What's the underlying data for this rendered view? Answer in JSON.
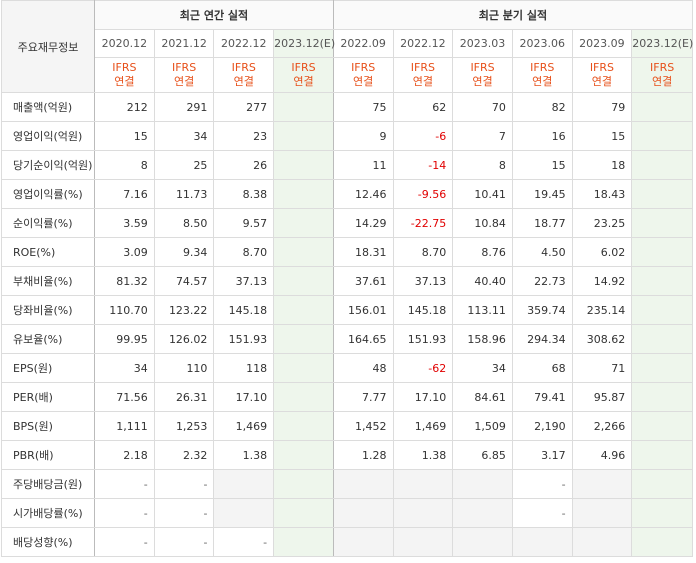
{
  "header": {
    "row_label": "주요재무정보",
    "annual_group": "최근 연간 실적",
    "quarterly_group": "최근 분기 실적",
    "annual_periods": [
      "2020.12",
      "2021.12",
      "2022.12",
      "2023.12(E)"
    ],
    "quarterly_periods": [
      "2022.09",
      "2022.12",
      "2023.03",
      "2023.06",
      "2023.09",
      "2023.12(E)"
    ],
    "ifrs_top": "IFRS",
    "ifrs_bottom": "연결"
  },
  "rows": [
    {
      "label": "매출액(억원)",
      "annual": [
        "212",
        "291",
        "277",
        ""
      ],
      "quarterly": [
        "75",
        "62",
        "70",
        "82",
        "79",
        ""
      ]
    },
    {
      "label": "영업이익(억원)",
      "annual": [
        "15",
        "34",
        "23",
        ""
      ],
      "quarterly": [
        "9",
        "-6",
        "7",
        "16",
        "15",
        ""
      ]
    },
    {
      "label": "당기순이익(억원)",
      "annual": [
        "8",
        "25",
        "26",
        ""
      ],
      "quarterly": [
        "11",
        "-14",
        "8",
        "15",
        "18",
        ""
      ]
    },
    {
      "label": "영업이익률(%)",
      "annual": [
        "7.16",
        "11.73",
        "8.38",
        ""
      ],
      "quarterly": [
        "12.46",
        "-9.56",
        "10.41",
        "19.45",
        "18.43",
        ""
      ]
    },
    {
      "label": "순이익률(%)",
      "annual": [
        "3.59",
        "8.50",
        "9.57",
        ""
      ],
      "quarterly": [
        "14.29",
        "-22.75",
        "10.84",
        "18.77",
        "23.25",
        ""
      ]
    },
    {
      "label": "ROE(%)",
      "annual": [
        "3.09",
        "9.34",
        "8.70",
        ""
      ],
      "quarterly": [
        "18.31",
        "8.70",
        "8.76",
        "4.50",
        "6.02",
        ""
      ]
    },
    {
      "label": "부채비율(%)",
      "annual": [
        "81.32",
        "74.57",
        "37.13",
        ""
      ],
      "quarterly": [
        "37.61",
        "37.13",
        "40.40",
        "22.73",
        "14.92",
        ""
      ]
    },
    {
      "label": "당좌비율(%)",
      "annual": [
        "110.70",
        "123.22",
        "145.18",
        ""
      ],
      "quarterly": [
        "156.01",
        "145.18",
        "113.11",
        "359.74",
        "235.14",
        ""
      ]
    },
    {
      "label": "유보율(%)",
      "annual": [
        "99.95",
        "126.02",
        "151.93",
        ""
      ],
      "quarterly": [
        "164.65",
        "151.93",
        "158.96",
        "294.34",
        "308.62",
        ""
      ]
    },
    {
      "label": "EPS(원)",
      "annual": [
        "34",
        "110",
        "118",
        ""
      ],
      "quarterly": [
        "48",
        "-62",
        "34",
        "68",
        "71",
        ""
      ]
    },
    {
      "label": "PER(배)",
      "annual": [
        "71.56",
        "26.31",
        "17.10",
        ""
      ],
      "quarterly": [
        "7.77",
        "17.10",
        "84.61",
        "79.41",
        "95.87",
        ""
      ]
    },
    {
      "label": "BPS(원)",
      "annual": [
        "1,111",
        "1,253",
        "1,469",
        ""
      ],
      "quarterly": [
        "1,452",
        "1,469",
        "1,509",
        "2,190",
        "2,266",
        ""
      ]
    },
    {
      "label": "PBR(배)",
      "annual": [
        "2.18",
        "2.32",
        "1.38",
        ""
      ],
      "quarterly": [
        "1.28",
        "1.38",
        "6.85",
        "3.17",
        "4.96",
        ""
      ]
    },
    {
      "label": "주당배당금(원)",
      "annual": [
        "-",
        "-",
        "",
        ""
      ],
      "quarterly": [
        "",
        "",
        "",
        "-",
        "",
        ""
      ]
    },
    {
      "label": "시가배당률(%)",
      "annual": [
        "-",
        "-",
        "",
        ""
      ],
      "quarterly": [
        "",
        "",
        "",
        "-",
        "",
        ""
      ]
    },
    {
      "label": "배당성향(%)",
      "annual": [
        "-",
        "-",
        "-",
        ""
      ],
      "quarterly": [
        "",
        "",
        "",
        "",
        "",
        ""
      ]
    }
  ]
}
